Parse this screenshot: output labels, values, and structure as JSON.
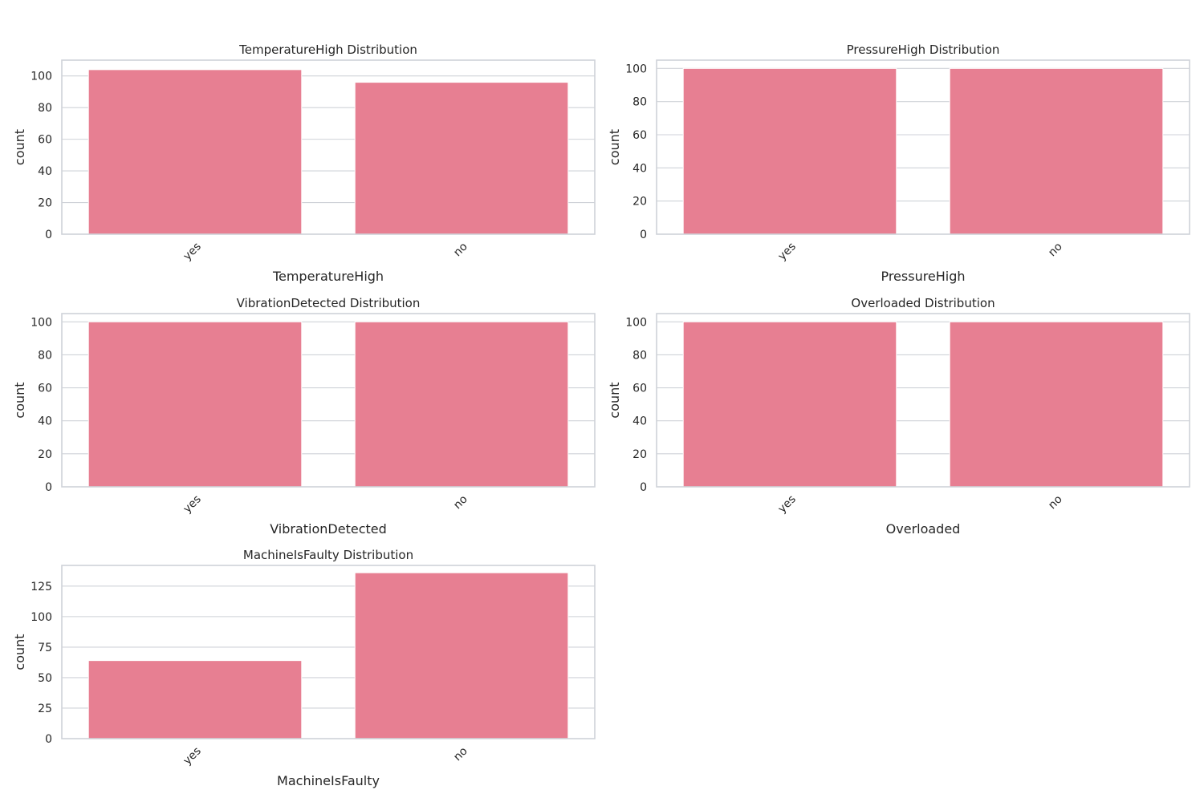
{
  "colors": {
    "bar": "#e77f92",
    "bar_edge": "#ffffff",
    "grid": "#cfd2d8",
    "axes_frame": "#cfd2d8",
    "text": "#262626",
    "background": "#ffffff"
  },
  "chart_data": [
    {
      "type": "bar",
      "title": "TemperatureHigh Distribution",
      "xlabel": "TemperatureHigh",
      "ylabel": "count",
      "categories": [
        "yes",
        "no"
      ],
      "values": [
        104,
        96
      ],
      "ylim": [
        0,
        110
      ],
      "yticks": [
        0,
        20,
        40,
        60,
        80,
        100
      ],
      "grid": true
    },
    {
      "type": "bar",
      "title": "PressureHigh Distribution",
      "xlabel": "PressureHigh",
      "ylabel": "count",
      "categories": [
        "yes",
        "no"
      ],
      "values": [
        100,
        100
      ],
      "ylim": [
        0,
        105
      ],
      "yticks": [
        0,
        20,
        40,
        60,
        80,
        100
      ],
      "grid": true
    },
    {
      "type": "bar",
      "title": "VibrationDetected Distribution",
      "xlabel": "VibrationDetected",
      "ylabel": "count",
      "categories": [
        "yes",
        "no"
      ],
      "values": [
        100,
        100
      ],
      "ylim": [
        0,
        105
      ],
      "yticks": [
        0,
        20,
        40,
        60,
        80,
        100
      ],
      "grid": true
    },
    {
      "type": "bar",
      "title": "Overloaded Distribution",
      "xlabel": "Overloaded",
      "ylabel": "count",
      "categories": [
        "yes",
        "no"
      ],
      "values": [
        100,
        100
      ],
      "ylim": [
        0,
        105
      ],
      "yticks": [
        0,
        20,
        40,
        60,
        80,
        100
      ],
      "grid": true
    },
    {
      "type": "bar",
      "title": "MachineIsFaulty Distribution",
      "xlabel": "MachineIsFaulty",
      "ylabel": "count",
      "categories": [
        "yes",
        "no"
      ],
      "values": [
        64,
        136
      ],
      "ylim": [
        0,
        142
      ],
      "yticks": [
        0,
        25,
        50,
        75,
        100,
        125
      ],
      "grid": true
    }
  ]
}
